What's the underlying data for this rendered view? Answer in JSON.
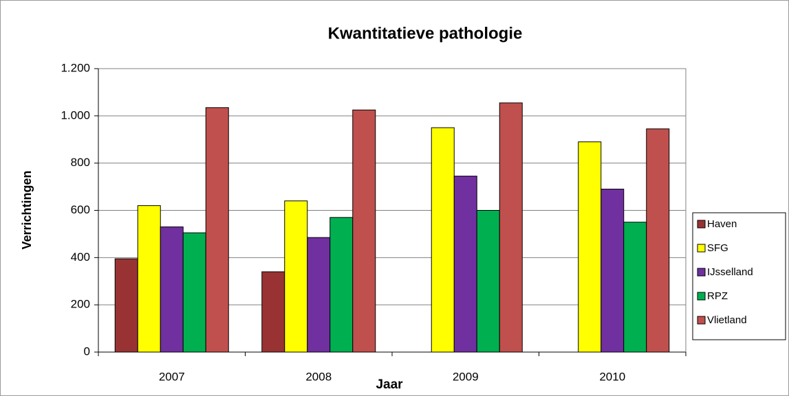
{
  "chart_data": {
    "type": "bar",
    "title": "Kwantitatieve pathologie",
    "x_label": "Jaar",
    "y_label": "Verrichtingen",
    "categories": [
      "2007",
      "2008",
      "2009",
      "2010"
    ],
    "series": [
      {
        "name": "Haven",
        "color": "#993333",
        "values": [
          395,
          340,
          null,
          null
        ]
      },
      {
        "name": "SFG",
        "color": "#ffff00",
        "values": [
          620,
          640,
          950,
          890
        ]
      },
      {
        "name": "IJsselland",
        "color": "#7030a0",
        "values": [
          530,
          485,
          745,
          690
        ]
      },
      {
        "name": "RPZ",
        "color": "#00b050",
        "values": [
          505,
          570,
          600,
          550
        ]
      },
      {
        "name": "Vlietland",
        "color": "#c0504d",
        "values": [
          1035,
          1025,
          1055,
          945
        ]
      }
    ],
    "ylim": [
      0,
      1200
    ],
    "yticks": [
      0,
      200,
      400,
      600,
      800,
      {
        "value": 1000,
        "label": "1.000"
      },
      {
        "value": 1200,
        "label": "1.200"
      }
    ],
    "grid": true,
    "legend": "right"
  }
}
